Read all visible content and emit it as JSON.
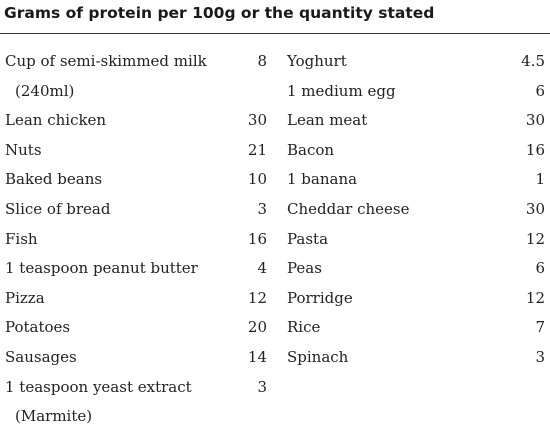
{
  "heading": "Grams of protein per 100g or the quantity stated",
  "left_column": [
    {
      "label": "Cup of semi-skimmed milk",
      "label_cont": "(240ml)",
      "value": "8"
    },
    {
      "label": "Lean chicken",
      "value": "30"
    },
    {
      "label": "Nuts",
      "value": "21"
    },
    {
      "label": "Baked beans",
      "value": "10"
    },
    {
      "label": "Slice of bread",
      "value": "3"
    },
    {
      "label": "Fish",
      "value": "16"
    },
    {
      "label": "1 teaspoon peanut butter",
      "value": "4"
    },
    {
      "label": "Pizza",
      "value": "12"
    },
    {
      "label": "Potatoes",
      "value": "20"
    },
    {
      "label": "Sausages",
      "value": "14"
    },
    {
      "label": "1 teaspoon yeast extract",
      "label_cont": "(Marmite)",
      "value": "3"
    }
  ],
  "right_column": [
    {
      "label": "Yoghurt",
      "value": "4.5"
    },
    {
      "label": "1 medium egg",
      "value": "6"
    },
    {
      "label": "Lean meat",
      "value": "30"
    },
    {
      "label": "Bacon",
      "value": "16"
    },
    {
      "label": "1 banana",
      "value": "1"
    },
    {
      "label": "Cheddar cheese",
      "value": "30"
    },
    {
      "label": "Pasta",
      "value": "12"
    },
    {
      "label": "Peas",
      "value": "6"
    },
    {
      "label": "Porridge",
      "value": "12"
    },
    {
      "label": "Rice",
      "value": "7"
    },
    {
      "label": "Spinach",
      "value": "3"
    }
  ]
}
